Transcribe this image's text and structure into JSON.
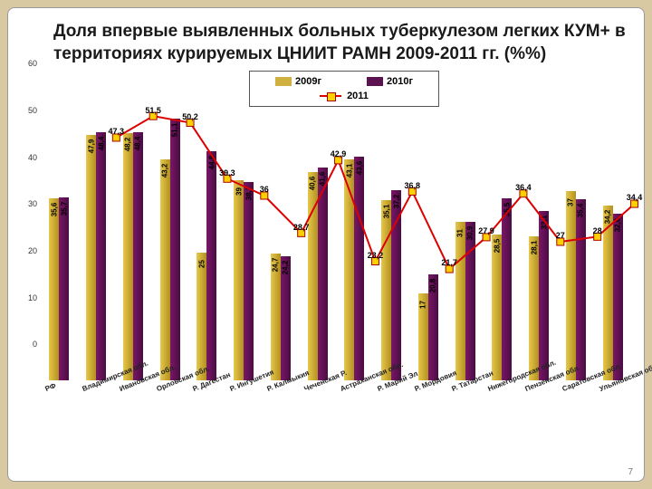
{
  "title": "Доля впервые выявленных больных туберкулезом легких КУМ+ в территориях курируемых ЦНИИТ РАМН 2009-2011 гг. (%%)",
  "page_number": "7",
  "chart": {
    "type": "grouped-bar-with-line",
    "ylim": [
      0,
      60
    ],
    "ytick_step": 10,
    "colors": {
      "y2009": "#d0b040",
      "y2010": "#5c1251",
      "y2011_bar": "#f5c400",
      "line": "#dd0000",
      "marker": "#ffd000",
      "bg": "#ffffff",
      "frame_bg": "#d9c9a3"
    },
    "legend": {
      "items": [
        {
          "label": "2009г",
          "sw": "y2009"
        },
        {
          "label": "2010г",
          "sw": "y2010"
        },
        {
          "label": "2011",
          "sw": "line"
        }
      ]
    },
    "categories": [
      {
        "name": "РФ",
        "y09": 35.6,
        "y10": 35.7,
        "y11_bar": 0,
        "line": null
      },
      {
        "name": "Владимирская обл.",
        "y09": 47.9,
        "y10": 48.4,
        "y11_bar": 0,
        "line": 47.3
      },
      {
        "name": "Ивановская обл.",
        "y09": 48.2,
        "y10": 48.4,
        "y11_bar": 0,
        "line": 51.5
      },
      {
        "name": "Орловская обл.",
        "y09": 43.2,
        "y10": 51.1,
        "y11_bar": 0,
        "line": 50.2
      },
      {
        "name": "Р. Дагестан",
        "y09": 25.0,
        "y10": 44.8,
        "y11_bar": 0,
        "line": 39.3
      },
      {
        "name": "Р. Ингушетия",
        "y09": 39.0,
        "y10": 38.7,
        "y11_bar": 0,
        "line": 36
      },
      {
        "name": "Р. Калмыкия",
        "y09": 24.7,
        "y10": 24.2,
        "y11_bar": 0,
        "line": 28.7
      },
      {
        "name": "Чеченская Р.",
        "y09": 40.6,
        "y10": 41.6,
        "y11_bar": 0,
        "line": 42.9
      },
      {
        "name": "Астраханская обл.",
        "y09": 43.1,
        "y10": 43.6,
        "y11_bar": 0,
        "line": 23.2
      },
      {
        "name": "Р. Марий Эл",
        "y09": 35.1,
        "y10": 37.2,
        "y11_bar": 0,
        "line": 36.8
      },
      {
        "name": "Р. Мордовия",
        "y09": 17.0,
        "y10": 20.8,
        "y11_bar": 0,
        "line": 21.7
      },
      {
        "name": "Р. Татарстан",
        "y09": 31.0,
        "y10": 30.9,
        "y11_bar": 0,
        "line": 27.9
      },
      {
        "name": "Нижегородская обл.",
        "y09": 28.5,
        "y10": 35.5,
        "y11_bar": 0,
        "line": 36.4
      },
      {
        "name": "Пензенская обл.",
        "y09": 28.1,
        "y10": 33.1,
        "y11_bar": 0,
        "line": 27
      },
      {
        "name": "Саратовская обл.",
        "y09": 37.0,
        "y10": 35.4,
        "y11_bar": 0,
        "line": 28
      },
      {
        "name": "Ульяновская обл.",
        "y09": 34.2,
        "y10": 32.6,
        "y11_bar": 0,
        "line": 34.4
      }
    ]
  }
}
